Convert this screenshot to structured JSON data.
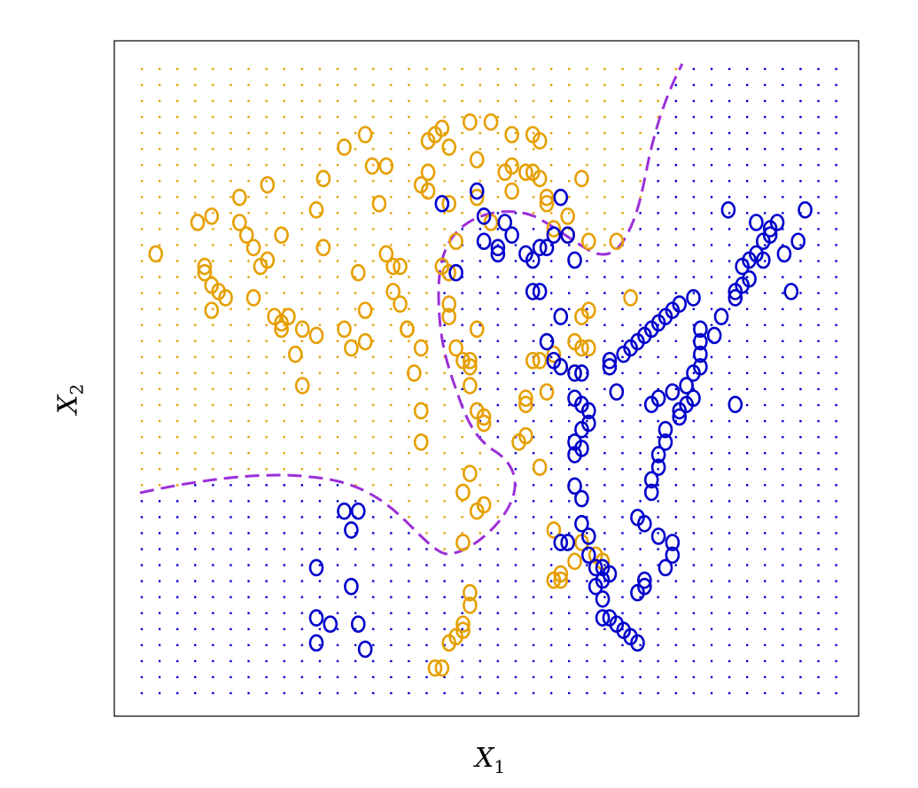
{
  "chart_data": {
    "type": "scatter",
    "xlabel": "X1",
    "ylabel": "X2",
    "xlim": [
      0,
      100
    ],
    "ylim": [
      0,
      100
    ],
    "axis_ticks": false,
    "grid_background": {
      "description_colors": {
        "orange_region": "#E69F00",
        "blue_region": "#0000CC"
      },
      "step": 2.55
    },
    "series": [
      {
        "color": "#E69F00",
        "points": [
          [
            2,
            70
          ],
          [
            8,
            75
          ],
          [
            10,
            76
          ],
          [
            9,
            68
          ],
          [
            9,
            67
          ],
          [
            10,
            65
          ],
          [
            11,
            64
          ],
          [
            12,
            63
          ],
          [
            10,
            61
          ],
          [
            14,
            79
          ],
          [
            15,
            73
          ],
          [
            14,
            75
          ],
          [
            16,
            71
          ],
          [
            17,
            68
          ],
          [
            18,
            69
          ],
          [
            16,
            63
          ],
          [
            20,
            73
          ],
          [
            18,
            81
          ],
          [
            19,
            60
          ],
          [
            20,
            59
          ],
          [
            20,
            58
          ],
          [
            21,
            60
          ],
          [
            22,
            54
          ],
          [
            23,
            58
          ],
          [
            25,
            57
          ],
          [
            23,
            49
          ],
          [
            25,
            77
          ],
          [
            26,
            82
          ],
          [
            26,
            71
          ],
          [
            29,
            58
          ],
          [
            30,
            55
          ],
          [
            31,
            67
          ],
          [
            32,
            61
          ],
          [
            32,
            56
          ],
          [
            29,
            87
          ],
          [
            32,
            89
          ],
          [
            33,
            84
          ],
          [
            35,
            84
          ],
          [
            34,
            78
          ],
          [
            35,
            70
          ],
          [
            36,
            68
          ],
          [
            37,
            68
          ],
          [
            36,
            64
          ],
          [
            37,
            62
          ],
          [
            38,
            58
          ],
          [
            40,
            55
          ],
          [
            39,
            51
          ],
          [
            40,
            45
          ],
          [
            40,
            40
          ],
          [
            43,
            68
          ],
          [
            44,
            62
          ],
          [
            44,
            60
          ],
          [
            45,
            55
          ],
          [
            44,
            67
          ],
          [
            46,
            53
          ],
          [
            47,
            53
          ],
          [
            47,
            52
          ],
          [
            47,
            49
          ],
          [
            48,
            58
          ],
          [
            48,
            45
          ],
          [
            49,
            44
          ],
          [
            49,
            43
          ],
          [
            47,
            35
          ],
          [
            46,
            32
          ],
          [
            46,
            24
          ],
          [
            47,
            16
          ],
          [
            47,
            14
          ],
          [
            46,
            11
          ],
          [
            46,
            10
          ],
          [
            45,
            9
          ],
          [
            44,
            8
          ],
          [
            43,
            4
          ],
          [
            42,
            4
          ],
          [
            38,
            58
          ],
          [
            40,
            81
          ],
          [
            41,
            80
          ],
          [
            41,
            83
          ],
          [
            41,
            88
          ],
          [
            42,
            89
          ],
          [
            43,
            90
          ],
          [
            44,
            87
          ],
          [
            44,
            78
          ],
          [
            45,
            72
          ],
          [
            48,
            79
          ],
          [
            48,
            85
          ],
          [
            50,
            75
          ],
          [
            52,
            83
          ],
          [
            53,
            89
          ],
          [
            53,
            80
          ],
          [
            55,
            83
          ],
          [
            56,
            83
          ],
          [
            58,
            78
          ],
          [
            59,
            74
          ],
          [
            61,
            73
          ],
          [
            63,
            82
          ],
          [
            68,
            72
          ],
          [
            70,
            63
          ],
          [
            64,
            61
          ],
          [
            63,
            60
          ],
          [
            63,
            55
          ],
          [
            64,
            55
          ],
          [
            62,
            56
          ],
          [
            62,
            51
          ],
          [
            59,
            54
          ],
          [
            57,
            53
          ],
          [
            58,
            48
          ],
          [
            56,
            53
          ],
          [
            55,
            46
          ],
          [
            55,
            47
          ],
          [
            54,
            40
          ],
          [
            55,
            41
          ],
          [
            47,
            91
          ],
          [
            50,
            91
          ],
          [
            56,
            89
          ],
          [
            57,
            88
          ],
          [
            53,
            84
          ],
          [
            57,
            82
          ],
          [
            58,
            79
          ],
          [
            61,
            76
          ],
          [
            61,
            73
          ],
          [
            64,
            72
          ],
          [
            57,
            36
          ],
          [
            59,
            26
          ],
          [
            63,
            24
          ],
          [
            62,
            21
          ],
          [
            60,
            19
          ],
          [
            59,
            18
          ],
          [
            59,
            18
          ],
          [
            60,
            18
          ],
          [
            65,
            22
          ],
          [
            66,
            21
          ],
          [
            49,
            30
          ],
          [
            48,
            29
          ]
        ]
      },
      {
        "color": "#0000CC",
        "points": [
          [
            43,
            78
          ],
          [
            45,
            67
          ],
          [
            48,
            80
          ],
          [
            49,
            76
          ],
          [
            49,
            72
          ],
          [
            51,
            71
          ],
          [
            51,
            70
          ],
          [
            52,
            75
          ],
          [
            53,
            73
          ],
          [
            55,
            70
          ],
          [
            56,
            69
          ],
          [
            57,
            71
          ],
          [
            59,
            73
          ],
          [
            60,
            79
          ],
          [
            61,
            73
          ],
          [
            62,
            69
          ],
          [
            58,
            71
          ],
          [
            57,
            64
          ],
          [
            56,
            64
          ],
          [
            58,
            56
          ],
          [
            60,
            60
          ],
          [
            59,
            53
          ],
          [
            60,
            52
          ],
          [
            62,
            51
          ],
          [
            63,
            51
          ],
          [
            62,
            47
          ],
          [
            63,
            46
          ],
          [
            64,
            45
          ],
          [
            64,
            43
          ],
          [
            63,
            42
          ],
          [
            62,
            40
          ],
          [
            63,
            39
          ],
          [
            62,
            38
          ],
          [
            62,
            33
          ],
          [
            63,
            31
          ],
          [
            63,
            27
          ],
          [
            64,
            25
          ],
          [
            64,
            22
          ],
          [
            65,
            20
          ],
          [
            66,
            20
          ],
          [
            67,
            19
          ],
          [
            66,
            18
          ],
          [
            65,
            17
          ],
          [
            66,
            15
          ],
          [
            66,
            12
          ],
          [
            67,
            12
          ],
          [
            68,
            11
          ],
          [
            69,
            10
          ],
          [
            70,
            9
          ],
          [
            71,
            8
          ],
          [
            71,
            16
          ],
          [
            72,
            17
          ],
          [
            72,
            18
          ],
          [
            75,
            20
          ],
          [
            76,
            22
          ],
          [
            76,
            24
          ],
          [
            74,
            25
          ],
          [
            72,
            27
          ],
          [
            71,
            28
          ],
          [
            73,
            32
          ],
          [
            73,
            34
          ],
          [
            74,
            36
          ],
          [
            74,
            38
          ],
          [
            75,
            40
          ],
          [
            75,
            42
          ],
          [
            77,
            44
          ],
          [
            77,
            45
          ],
          [
            78,
            46
          ],
          [
            79,
            47
          ],
          [
            78,
            49
          ],
          [
            79,
            51
          ],
          [
            80,
            52
          ],
          [
            80,
            54
          ],
          [
            80,
            56
          ],
          [
            82,
            57
          ],
          [
            83,
            60
          ],
          [
            85,
            63
          ],
          [
            85,
            64
          ],
          [
            86,
            65
          ],
          [
            87,
            66
          ],
          [
            86,
            68
          ],
          [
            87,
            69
          ],
          [
            88,
            70
          ],
          [
            89,
            72
          ],
          [
            90,
            73
          ],
          [
            90,
            74
          ],
          [
            91,
            75
          ],
          [
            88,
            75
          ],
          [
            73,
            46
          ],
          [
            74,
            47
          ],
          [
            76,
            48
          ],
          [
            78,
            49
          ],
          [
            68,
            48
          ],
          [
            67,
            52
          ],
          [
            67,
            53
          ],
          [
            69,
            54
          ],
          [
            70,
            55
          ],
          [
            71,
            56
          ],
          [
            72,
            57
          ],
          [
            73,
            58
          ],
          [
            74,
            59
          ],
          [
            75,
            60
          ],
          [
            76,
            61
          ],
          [
            77,
            62
          ],
          [
            95,
            77
          ],
          [
            94,
            72
          ],
          [
            93,
            64
          ],
          [
            89,
            69
          ],
          [
            92,
            70
          ],
          [
            84,
            77
          ],
          [
            79,
            63
          ],
          [
            85,
            46
          ],
          [
            80,
            58
          ],
          [
            60,
            24
          ],
          [
            61,
            24
          ],
          [
            29,
            29
          ],
          [
            31,
            29
          ],
          [
            30,
            26
          ],
          [
            30,
            17
          ],
          [
            25,
            20
          ],
          [
            25,
            12
          ],
          [
            27,
            11
          ],
          [
            25,
            8
          ],
          [
            31,
            11
          ],
          [
            32,
            7
          ]
        ]
      }
    ]
  },
  "labels": {
    "x_main": "X",
    "x_sub": "1",
    "y_main": "X",
    "y_sub": "2"
  }
}
